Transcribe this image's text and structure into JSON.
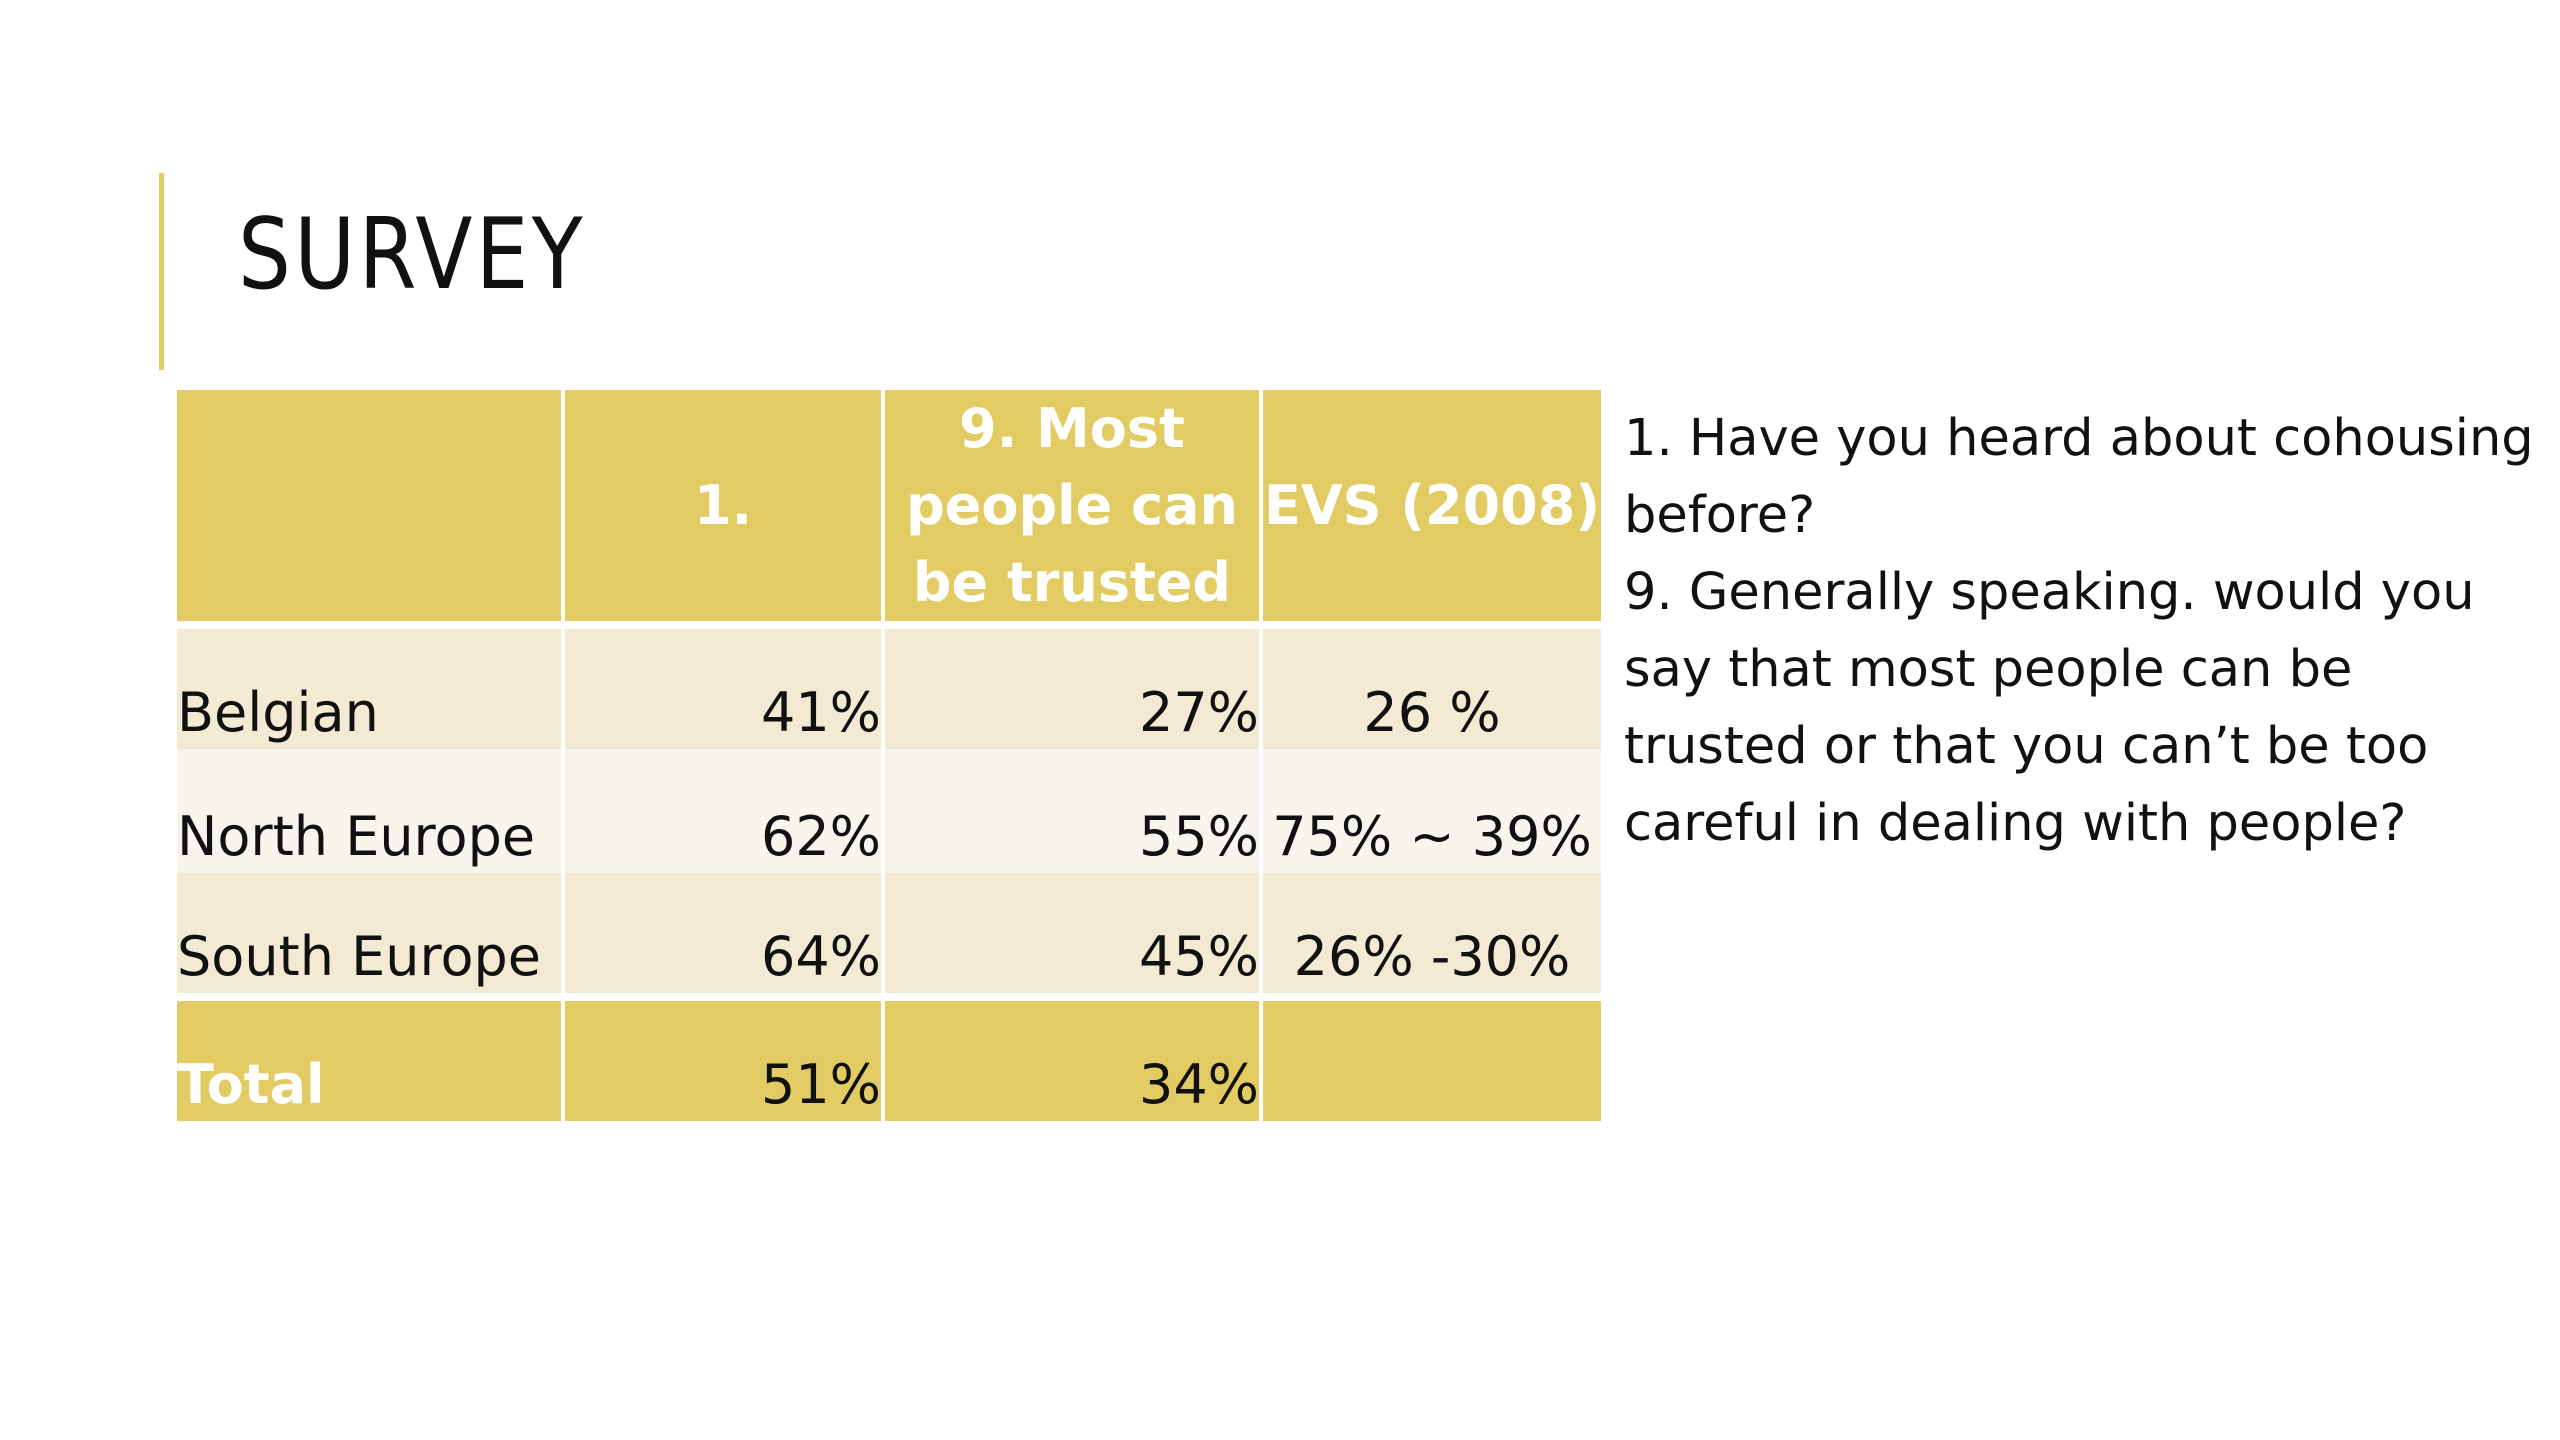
{
  "slide": {
    "title": "SURVEY"
  },
  "colors": {
    "accent": "#e3cb63",
    "row_band_1": "#f3ead3",
    "row_band_2": "#f8f5ec"
  },
  "table": {
    "headers": {
      "c0": "",
      "c1": "1.",
      "c2": "9. Most people can be trusted",
      "c3": "EVS (2008)"
    },
    "rows": [
      {
        "label": "Belgian",
        "q1": "41%",
        "q9": "27%",
        "evs": "26 %"
      },
      {
        "label": "North Europe",
        "q1": "62%",
        "q9": "55%",
        "evs": "75% ~ 39%"
      },
      {
        "label": "South Europe",
        "q1": "64%",
        "q9": "45%",
        "evs": "26% -30%"
      },
      {
        "label": "Total",
        "q1": "51%",
        "q9": "34%",
        "evs": ""
      }
    ]
  },
  "notes": {
    "q1": "1. Have you heard about cohousing before?",
    "q9": "9. Generally speaking. would you say that most people can be trusted or that you can’t be too careful in dealing with people?"
  }
}
